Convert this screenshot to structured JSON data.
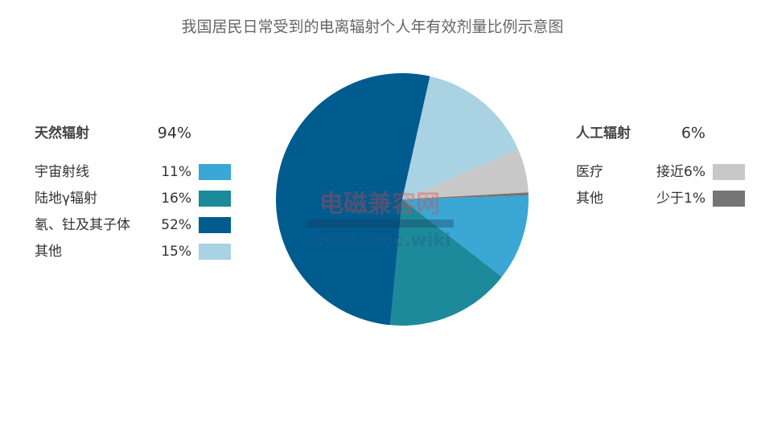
{
  "chart_data": {
    "type": "pie",
    "title": "我国居民日常受到的电离辐射个人年有效剂量比例示意图",
    "groups": [
      {
        "name": "天然辐射",
        "value": 94,
        "value_label": "94%",
        "categories": [
          "宇宙射线",
          "陆地γ辐射",
          "氡、钍及其子体",
          "其他"
        ],
        "values": [
          11,
          16,
          52,
          15
        ],
        "value_labels": [
          "11%",
          "16%",
          "52%",
          "15%"
        ],
        "colors": [
          "#3ba7d5",
          "#1c8a9a",
          "#005b8f",
          "#a9d2e2"
        ]
      },
      {
        "name": "人工辐射",
        "value": 6,
        "value_label": "6%",
        "categories": [
          "医疗",
          "其他"
        ],
        "values": [
          5.6,
          0.4
        ],
        "value_labels": [
          "接近6%",
          "少于1%"
        ],
        "colors": [
          "#c8c8c8",
          "#757575"
        ]
      }
    ]
  },
  "watermark": {
    "name": "电磁兼容网",
    "url": "www.emc.wiki"
  }
}
